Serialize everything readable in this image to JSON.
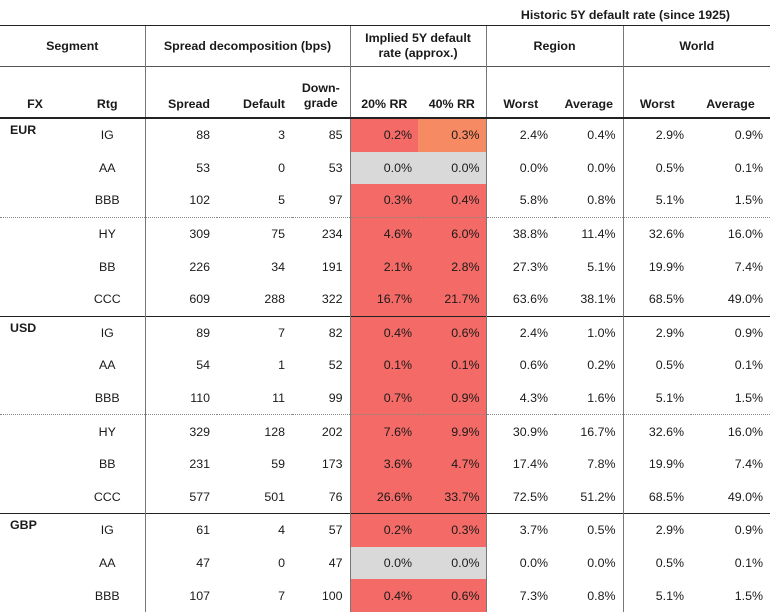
{
  "supertitle": "Historic 5Y default rate (since 1925)",
  "headers": {
    "segment": "Segment",
    "spread_group": "Spread decomposition (bps)",
    "implied_group": "Implied 5Y default rate (approx.)",
    "region_group": "Region",
    "world_group": "World",
    "fx": "FX",
    "rtg": "Rtg",
    "spread": "Spread",
    "default": "Default",
    "downgrade": "Down-grade",
    "rr20": "20% RR",
    "rr40": "40% RR",
    "region_worst": "Worst",
    "region_avg": "Average",
    "world_worst": "Worst",
    "world_avg": "Average"
  },
  "heat_colors": {
    "grey": "#d9d9d9",
    "red": "#f36a66",
    "orange": "#f68a63"
  },
  "rows": [
    {
      "fx": "EUR",
      "rtg": "IG",
      "spread": "88",
      "default": "3",
      "downgrade": "85",
      "rr20": "0.2%",
      "rr40": "0.3%",
      "rw": "2.4%",
      "ra": "0.4%",
      "ww": "2.9%",
      "wa": "0.9%"
    },
    {
      "fx": "",
      "rtg": "AA",
      "spread": "53",
      "default": "0",
      "downgrade": "53",
      "rr20": "0.0%",
      "rr40": "0.0%",
      "rw": "0.0%",
      "ra": "0.0%",
      "ww": "0.5%",
      "wa": "0.1%"
    },
    {
      "fx": "",
      "rtg": "BBB",
      "spread": "102",
      "default": "5",
      "downgrade": "97",
      "rr20": "0.3%",
      "rr40": "0.4%",
      "rw": "5.8%",
      "ra": "0.8%",
      "ww": "5.1%",
      "wa": "1.5%"
    },
    {
      "fx": "",
      "rtg": "HY",
      "spread": "309",
      "default": "75",
      "downgrade": "234",
      "rr20": "4.6%",
      "rr40": "6.0%",
      "rw": "38.8%",
      "ra": "11.4%",
      "ww": "32.6%",
      "wa": "16.0%"
    },
    {
      "fx": "",
      "rtg": "BB",
      "spread": "226",
      "default": "34",
      "downgrade": "191",
      "rr20": "2.1%",
      "rr40": "2.8%",
      "rw": "27.3%",
      "ra": "5.1%",
      "ww": "19.9%",
      "wa": "7.4%"
    },
    {
      "fx": "",
      "rtg": "CCC",
      "spread": "609",
      "default": "288",
      "downgrade": "322",
      "rr20": "16.7%",
      "rr40": "21.7%",
      "rw": "63.6%",
      "ra": "38.1%",
      "ww": "68.5%",
      "wa": "49.0%"
    },
    {
      "fx": "USD",
      "rtg": "IG",
      "spread": "89",
      "default": "7",
      "downgrade": "82",
      "rr20": "0.4%",
      "rr40": "0.6%",
      "rw": "2.4%",
      "ra": "1.0%",
      "ww": "2.9%",
      "wa": "0.9%"
    },
    {
      "fx": "",
      "rtg": "AA",
      "spread": "54",
      "default": "1",
      "downgrade": "52",
      "rr20": "0.1%",
      "rr40": "0.1%",
      "rw": "0.6%",
      "ra": "0.2%",
      "ww": "0.5%",
      "wa": "0.1%"
    },
    {
      "fx": "",
      "rtg": "BBB",
      "spread": "110",
      "default": "11",
      "downgrade": "99",
      "rr20": "0.7%",
      "rr40": "0.9%",
      "rw": "4.3%",
      "ra": "1.6%",
      "ww": "5.1%",
      "wa": "1.5%"
    },
    {
      "fx": "",
      "rtg": "HY",
      "spread": "329",
      "default": "128",
      "downgrade": "202",
      "rr20": "7.6%",
      "rr40": "9.9%",
      "rw": "30.9%",
      "ra": "16.7%",
      "ww": "32.6%",
      "wa": "16.0%"
    },
    {
      "fx": "",
      "rtg": "BB",
      "spread": "231",
      "default": "59",
      "downgrade": "173",
      "rr20": "3.6%",
      "rr40": "4.7%",
      "rw": "17.4%",
      "ra": "7.8%",
      "ww": "19.9%",
      "wa": "7.4%"
    },
    {
      "fx": "",
      "rtg": "CCC",
      "spread": "577",
      "default": "501",
      "downgrade": "76",
      "rr20": "26.6%",
      "rr40": "33.7%",
      "rw": "72.5%",
      "ra": "51.2%",
      "ww": "68.5%",
      "wa": "49.0%"
    },
    {
      "fx": "GBP",
      "rtg": "IG",
      "spread": "61",
      "default": "4",
      "downgrade": "57",
      "rr20": "0.2%",
      "rr40": "0.3%",
      "rw": "3.7%",
      "ra": "0.5%",
      "ww": "2.9%",
      "wa": "0.9%"
    },
    {
      "fx": "",
      "rtg": "AA",
      "spread": "47",
      "default": "0",
      "downgrade": "47",
      "rr20": "0.0%",
      "rr40": "0.0%",
      "rw": "0.0%",
      "ra": "0.0%",
      "ww": "0.5%",
      "wa": "0.1%"
    },
    {
      "fx": "",
      "rtg": "BBB",
      "spread": "107",
      "default": "7",
      "downgrade": "100",
      "rr20": "0.4%",
      "rr40": "0.6%",
      "rw": "7.3%",
      "ra": "0.8%",
      "ww": "5.1%",
      "wa": "1.5%"
    }
  ]
}
